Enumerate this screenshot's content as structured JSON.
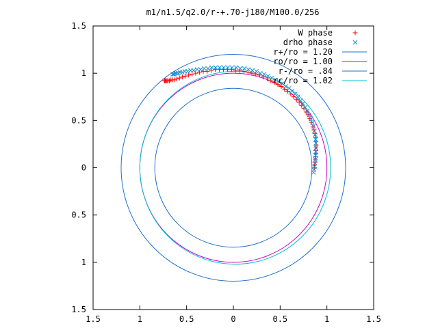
{
  "chart_data": {
    "type": "scatter",
    "title": "m1/n1.5/q2.0/r-+.70-j180/M100.0/256",
    "xlabel": "",
    "ylabel": "",
    "xlim": [
      -1.5,
      1.5
    ],
    "ylim": [
      -1.5,
      1.5
    ],
    "x_ticks": [
      -1.5,
      -1,
      -0.5,
      0,
      0.5,
      1,
      1.5
    ],
    "y_ticks": [
      -1.5,
      -1,
      -0.5,
      0,
      0.5,
      1,
      1.5
    ],
    "x_tick_labels": [
      "1.5",
      "1",
      "0.5",
      "0",
      "0.5",
      "1",
      "1.5"
    ],
    "y_tick_labels": [
      "1.5",
      "1",
      "0.5",
      "0",
      "0.5",
      "1",
      "1.5"
    ],
    "grid": false,
    "legend_position": "top-right",
    "series": [
      {
        "name": "W phase",
        "kind": "points",
        "marker": "+",
        "color": "#ff0000",
        "x": [
          0.866,
          0.869,
          0.872,
          0.875,
          0.878,
          0.88,
          0.882,
          0.883,
          0.884,
          0.883,
          0.879,
          0.872,
          0.862,
          0.85,
          0.835,
          0.818,
          0.799,
          0.778,
          0.755,
          0.73,
          0.703,
          0.675,
          0.645,
          0.614,
          0.581,
          0.547,
          0.512,
          0.476,
          0.439,
          0.401,
          0.362,
          0.322,
          0.281,
          0.24,
          0.198,
          0.156,
          0.113,
          0.07,
          0.026,
          -0.019,
          -0.063,
          -0.107,
          -0.151,
          -0.194,
          -0.237,
          -0.28,
          -0.322,
          -0.363,
          -0.403,
          -0.441,
          -0.478,
          -0.513,
          -0.546,
          -0.576,
          -0.604,
          -0.628,
          -0.649,
          -0.668,
          -0.684,
          -0.697,
          -0.708,
          -0.717,
          -0.725,
          -0.732,
          -0.738
        ],
        "y": [
          0.0,
          0.03,
          0.06,
          0.09,
          0.12,
          0.15,
          0.18,
          0.21,
          0.24,
          0.28,
          0.32,
          0.36,
          0.4,
          0.44,
          0.48,
          0.52,
          0.56,
          0.59,
          0.63,
          0.66,
          0.69,
          0.72,
          0.75,
          0.78,
          0.81,
          0.83,
          0.86,
          0.88,
          0.9,
          0.92,
          0.94,
          0.96,
          0.98,
          0.99,
          1.0,
          1.01,
          1.02,
          1.03,
          1.03,
          1.04,
          1.04,
          1.04,
          1.04,
          1.04,
          1.03,
          1.02,
          1.02,
          1.01,
          1.0,
          0.99,
          0.98,
          0.97,
          0.96,
          0.95,
          0.94,
          0.93,
          0.93,
          0.93,
          0.92,
          0.92,
          0.92,
          0.92,
          0.92,
          0.92,
          0.92
        ]
      },
      {
        "name": "drho phase",
        "kind": "points",
        "marker": "x",
        "color": "#1e90d0",
        "x": [
          0.858,
          0.863,
          0.868,
          0.873,
          0.877,
          0.88,
          0.882,
          0.883,
          0.882,
          0.879,
          0.874,
          0.866,
          0.856,
          0.843,
          0.828,
          0.81,
          0.79,
          0.768,
          0.744,
          0.718,
          0.69,
          0.66,
          0.628,
          0.595,
          0.56,
          0.524,
          0.487,
          0.449,
          0.41,
          0.37,
          0.329,
          0.288,
          0.246,
          0.203,
          0.16,
          0.117,
          0.073,
          0.029,
          -0.015,
          -0.059,
          -0.103,
          -0.146,
          -0.189,
          -0.231,
          -0.272,
          -0.312,
          -0.351,
          -0.388,
          -0.424,
          -0.458,
          -0.49,
          -0.519,
          -0.546,
          -0.57,
          -0.59,
          -0.607,
          -0.621,
          -0.632,
          -0.641,
          -0.648
        ],
        "y": [
          -0.05,
          -0.02,
          0.01,
          0.05,
          0.09,
          0.13,
          0.17,
          0.21,
          0.26,
          0.3,
          0.35,
          0.39,
          0.44,
          0.48,
          0.52,
          0.56,
          0.6,
          0.64,
          0.68,
          0.71,
          0.75,
          0.78,
          0.81,
          0.84,
          0.86,
          0.89,
          0.91,
          0.93,
          0.95,
          0.97,
          0.99,
          1.0,
          1.02,
          1.03,
          1.04,
          1.05,
          1.05,
          1.06,
          1.06,
          1.06,
          1.06,
          1.06,
          1.06,
          1.06,
          1.05,
          1.05,
          1.04,
          1.04,
          1.03,
          1.03,
          1.02,
          1.02,
          1.01,
          1.01,
          1.0,
          1.0,
          1.0,
          0.99,
          0.99,
          0.99
        ]
      },
      {
        "name": "r+/ro = 1.20",
        "kind": "circle",
        "radius": 1.2,
        "center": [
          0,
          0
        ],
        "color": "#1f6fd0"
      },
      {
        "name": "ro/ro = 1.00",
        "kind": "circle",
        "radius": 1.0,
        "center": [
          0,
          0
        ],
        "color": "#cc00cc"
      },
      {
        "name": "r-/ro = .84",
        "kind": "circle",
        "radius": 0.84,
        "center": [
          0,
          0
        ],
        "color": "#1f6fd0"
      },
      {
        "name": "rc/ro = 1.02",
        "kind": "circle",
        "radius": 1.02,
        "center": [
          0.02,
          0
        ],
        "color": "#00c0d0"
      }
    ]
  }
}
